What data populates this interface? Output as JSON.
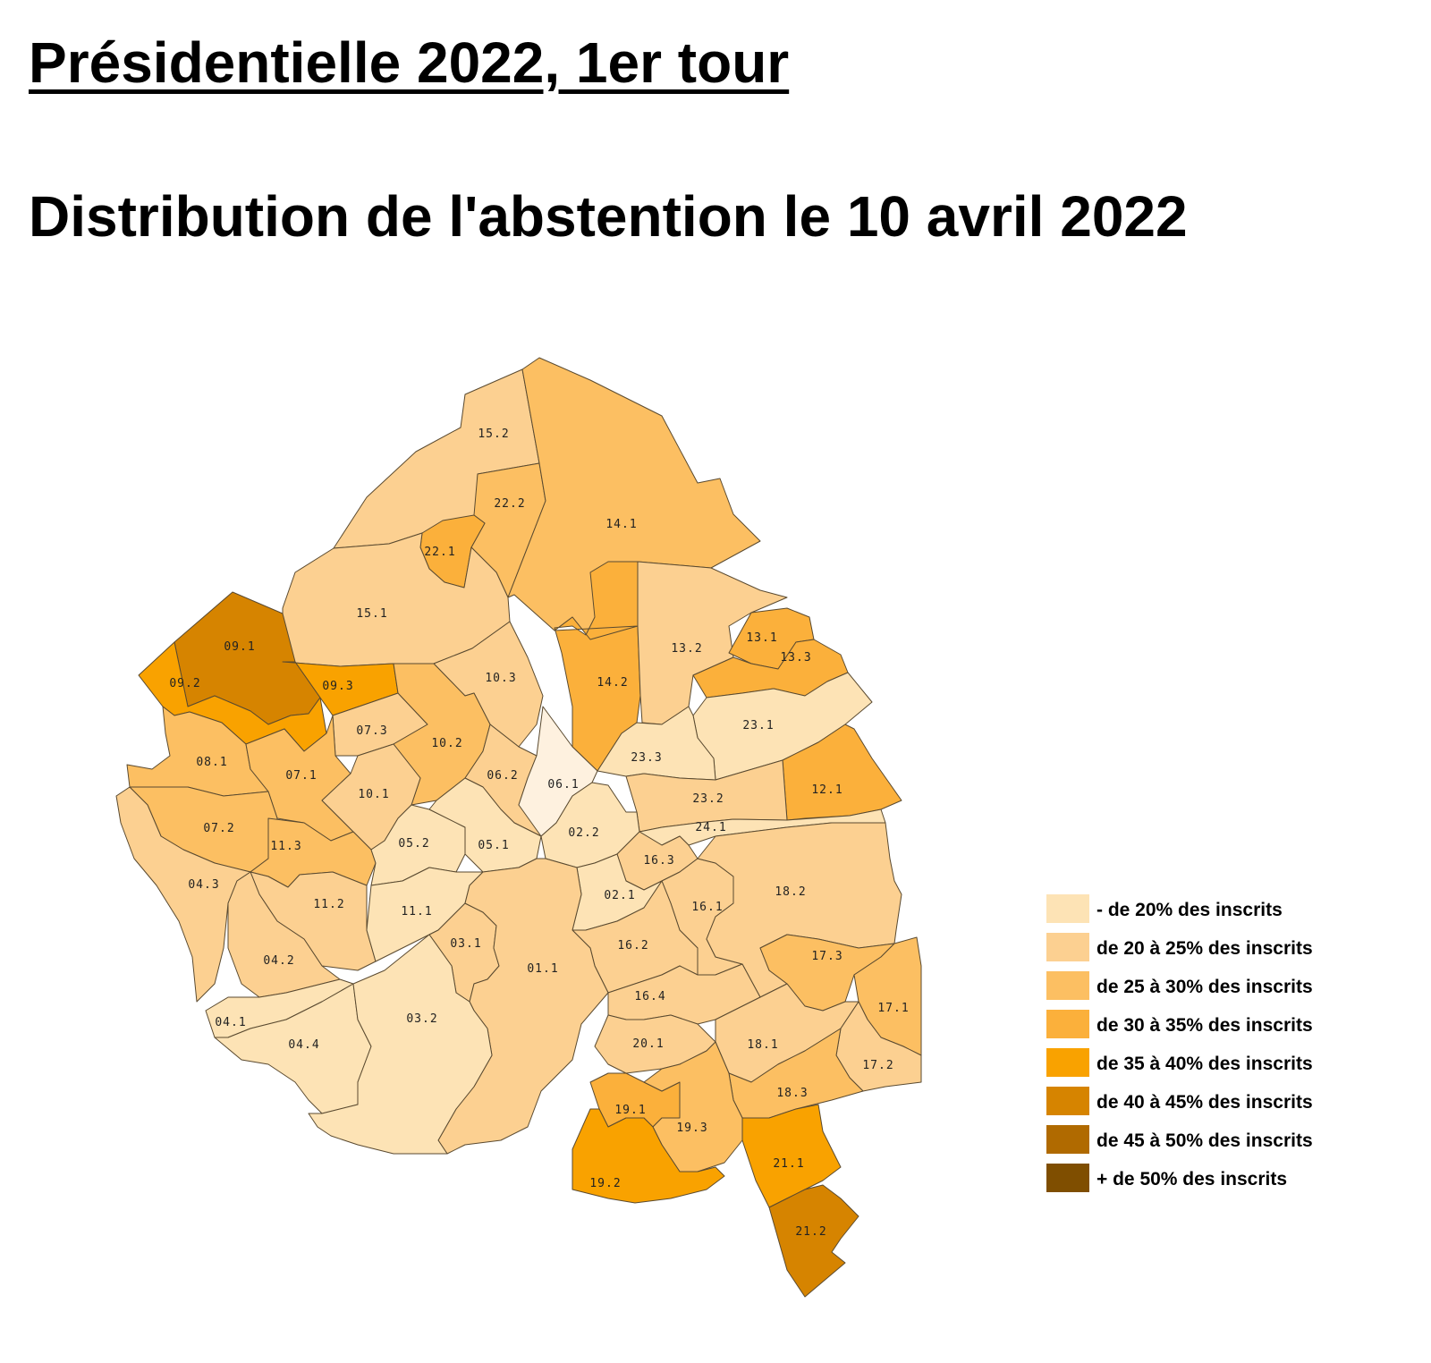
{
  "header": {
    "title": "Présidentielle 2022, 1er tour",
    "subtitle": "Distribution de l'abstention le 10 avril 2022"
  },
  "legend": [
    {
      "label": "- de 20% des inscrits",
      "color": "#fde3b5"
    },
    {
      "label": "de 20 à 25% des inscrits",
      "color": "#fcd091"
    },
    {
      "label": "de 25 à 30% des inscrits",
      "color": "#fcbf62"
    },
    {
      "label": "de 30 à 35% des inscrits",
      "color": "#fbb03b"
    },
    {
      "label": "de 35 à 40% des inscrits",
      "color": "#f9a200"
    },
    {
      "label": "de 40 à 45% des inscrits",
      "color": "#d68400"
    },
    {
      "label": "de 45 à 50% des inscrits",
      "color": "#b06a00"
    },
    {
      "label": "+ de 50% des inscrits",
      "color": "#7f4e00"
    }
  ],
  "districts": [
    {
      "id": "15.2",
      "cls": 1
    },
    {
      "id": "22.2",
      "cls": 2
    },
    {
      "id": "14.1",
      "cls": 2
    },
    {
      "id": "22.1",
      "cls": 3
    },
    {
      "id": "15.1",
      "cls": 1
    },
    {
      "id": "09.1",
      "cls": 5
    },
    {
      "id": "09.2",
      "cls": 4
    },
    {
      "id": "09.3",
      "cls": 4
    },
    {
      "id": "10.3",
      "cls": 1
    },
    {
      "id": "14.2",
      "cls": 3
    },
    {
      "id": "13.2",
      "cls": 1
    },
    {
      "id": "13.1",
      "cls": 3
    },
    {
      "id": "13.3",
      "cls": 3
    },
    {
      "id": "23.1",
      "cls": 0
    },
    {
      "id": "07.3",
      "cls": 1
    },
    {
      "id": "10.2",
      "cls": 2
    },
    {
      "id": "06.2",
      "cls": 1
    },
    {
      "id": "06.1",
      "cls": -1
    },
    {
      "id": "23.3",
      "cls": 0
    },
    {
      "id": "12.1",
      "cls": 3
    },
    {
      "id": "08.1",
      "cls": 2
    },
    {
      "id": "07.1",
      "cls": 2
    },
    {
      "id": "10.1",
      "cls": 1
    },
    {
      "id": "23.2",
      "cls": 1
    },
    {
      "id": "07.2",
      "cls": 2
    },
    {
      "id": "11.3",
      "cls": 2
    },
    {
      "id": "05.2",
      "cls": 0
    },
    {
      "id": "05.1",
      "cls": 0
    },
    {
      "id": "02.2",
      "cls": 0
    },
    {
      "id": "24.1",
      "cls": 0
    },
    {
      "id": "16.3",
      "cls": 1
    },
    {
      "id": "04.3",
      "cls": 1
    },
    {
      "id": "11.2",
      "cls": 1
    },
    {
      "id": "11.1",
      "cls": 0
    },
    {
      "id": "02.1",
      "cls": 0
    },
    {
      "id": "16.1",
      "cls": 1
    },
    {
      "id": "18.2",
      "cls": 1
    },
    {
      "id": "03.1",
      "cls": 1
    },
    {
      "id": "16.2",
      "cls": 1
    },
    {
      "id": "04.2",
      "cls": 1
    },
    {
      "id": "01.1",
      "cls": 1
    },
    {
      "id": "17.3",
      "cls": 2
    },
    {
      "id": "17.1",
      "cls": 2
    },
    {
      "id": "16.4",
      "cls": 1
    },
    {
      "id": "04.1",
      "cls": 0
    },
    {
      "id": "04.4",
      "cls": 0
    },
    {
      "id": "03.2",
      "cls": 0
    },
    {
      "id": "20.1",
      "cls": 1
    },
    {
      "id": "18.1",
      "cls": 1
    },
    {
      "id": "17.2",
      "cls": 1
    },
    {
      "id": "18.3",
      "cls": 2
    },
    {
      "id": "19.1",
      "cls": 3
    },
    {
      "id": "19.3",
      "cls": 2
    },
    {
      "id": "21.1",
      "cls": 4
    },
    {
      "id": "19.2",
      "cls": 4
    },
    {
      "id": "21.2",
      "cls": 5
    }
  ],
  "lightest_color": "#fef1df"
}
